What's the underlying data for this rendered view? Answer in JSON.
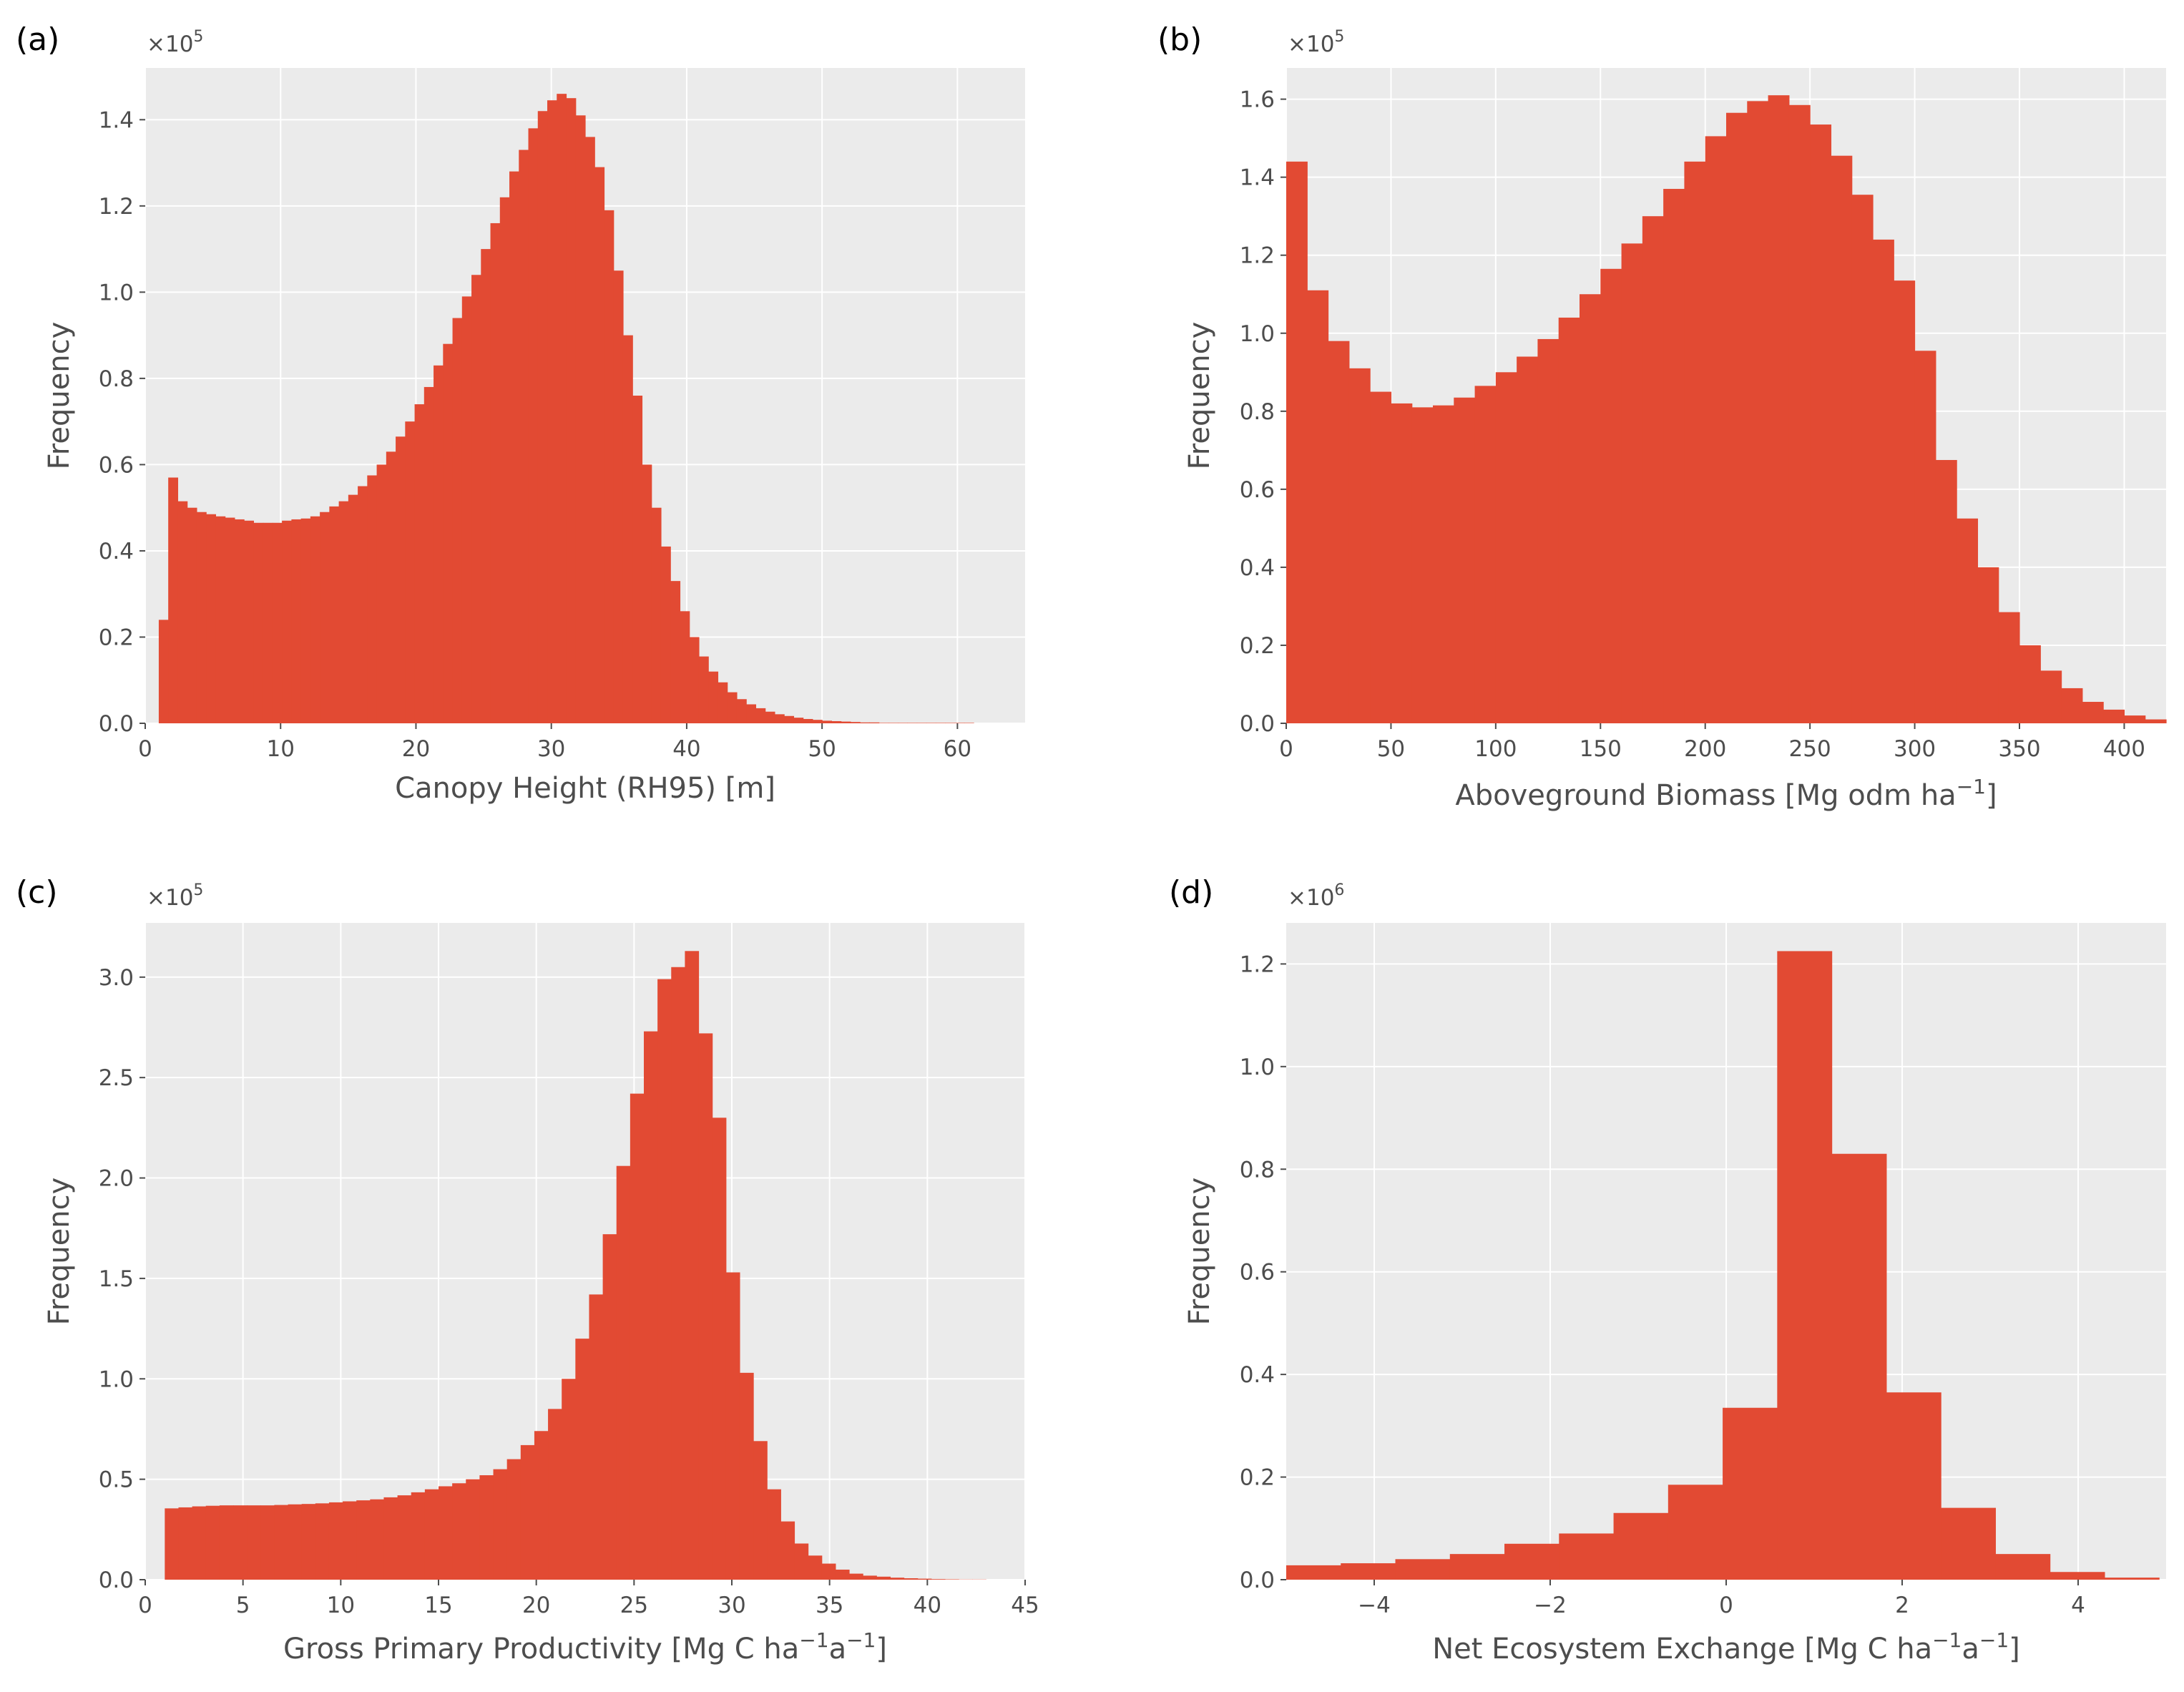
{
  "figure": {
    "bar_color": "#e24a33",
    "plot_bg": "#ebebeb",
    "grid_color": "#ffffff",
    "text_color": "#4d4d4d"
  },
  "chart_data": [
    {
      "panel_label": "(a)",
      "type": "bar",
      "subtype": "histogram",
      "title": "",
      "xlabel": "Canopy Height (RH95) [m]",
      "ylabel": "Frequency",
      "y_multiplier": "×10",
      "y_exponent": "5",
      "xlim": [
        0,
        65
      ],
      "ylim": [
        0,
        1.52
      ],
      "x_ticks": [
        0,
        10,
        20,
        30,
        40,
        50,
        60
      ],
      "x_tick_labels": [
        "0",
        "10",
        "20",
        "30",
        "40",
        "50",
        "60"
      ],
      "y_ticks": [
        0.0,
        0.2,
        0.4,
        0.6,
        0.8,
        1.0,
        1.2,
        1.4
      ],
      "y_tick_labels": [
        "0.0",
        "0.2",
        "0.4",
        "0.6",
        "0.8",
        "1.0",
        "1.2",
        "1.4"
      ],
      "bin_start": 1.0,
      "bin_width": 0.7,
      "values": [
        0.24,
        0.57,
        0.515,
        0.5,
        0.49,
        0.485,
        0.48,
        0.477,
        0.473,
        0.47,
        0.465,
        0.465,
        0.465,
        0.47,
        0.473,
        0.475,
        0.48,
        0.49,
        0.503,
        0.515,
        0.53,
        0.55,
        0.575,
        0.6,
        0.63,
        0.665,
        0.7,
        0.74,
        0.78,
        0.83,
        0.88,
        0.94,
        0.99,
        1.04,
        1.1,
        1.16,
        1.22,
        1.28,
        1.33,
        1.38,
        1.42,
        1.445,
        1.46,
        1.45,
        1.41,
        1.36,
        1.29,
        1.19,
        1.05,
        0.9,
        0.76,
        0.6,
        0.5,
        0.41,
        0.33,
        0.26,
        0.2,
        0.155,
        0.12,
        0.095,
        0.072,
        0.056,
        0.044,
        0.035,
        0.027,
        0.021,
        0.017,
        0.013,
        0.01,
        0.008,
        0.006,
        0.005,
        0.004,
        0.003,
        0.002,
        0.002,
        0.001,
        0.001,
        0.001,
        0.001,
        0.001,
        0.001,
        0.001,
        0.001,
        0.001,
        0.001
      ]
    },
    {
      "panel_label": "(b)",
      "type": "bar",
      "subtype": "histogram",
      "title": "",
      "xlabel": "Aboveground Biomass [Mg odm ha",
      "xlabel_sup": "−1",
      "xlabel_end": "]",
      "ylabel": "Frequency",
      "y_multiplier": "×10",
      "y_exponent": "5",
      "xlim": [
        0,
        420
      ],
      "ylim": [
        0,
        1.68
      ],
      "x_ticks": [
        0,
        50,
        100,
        150,
        200,
        250,
        300,
        350,
        400
      ],
      "x_tick_labels": [
        "0",
        "50",
        "100",
        "150",
        "200",
        "250",
        "300",
        "350",
        "400"
      ],
      "y_ticks": [
        0.0,
        0.2,
        0.4,
        0.6,
        0.8,
        1.0,
        1.2,
        1.4,
        1.6
      ],
      "y_tick_labels": [
        "0.0",
        "0.2",
        "0.4",
        "0.6",
        "0.8",
        "1.0",
        "1.2",
        "1.4",
        "1.6"
      ],
      "bin_start": 0,
      "bin_width": 10,
      "values": [
        1.44,
        1.11,
        0.98,
        0.91,
        0.85,
        0.82,
        0.81,
        0.815,
        0.835,
        0.865,
        0.9,
        0.94,
        0.985,
        1.04,
        1.1,
        1.165,
        1.23,
        1.3,
        1.37,
        1.44,
        1.505,
        1.565,
        1.595,
        1.61,
        1.585,
        1.535,
        1.455,
        1.355,
        1.24,
        1.135,
        0.955,
        0.675,
        0.525,
        0.4,
        0.285,
        0.2,
        0.135,
        0.09,
        0.055,
        0.035,
        0.02,
        0.01
      ]
    },
    {
      "panel_label": "(c)",
      "type": "bar",
      "subtype": "histogram",
      "title": "",
      "xlabel": "Gross Primary Productivity [Mg C ha",
      "xlabel_sup": "−1",
      "xlabel_mid": "a",
      "xlabel_sup2": "−1",
      "xlabel_end": "]",
      "ylabel": "Frequency",
      "y_multiplier": "×10",
      "y_exponent": "5",
      "xlim": [
        0,
        45
      ],
      "ylim": [
        0,
        3.27
      ],
      "x_ticks": [
        0,
        5,
        10,
        15,
        20,
        25,
        30,
        35,
        40,
        45
      ],
      "x_tick_labels": [
        "0",
        "5",
        "10",
        "15",
        "20",
        "25",
        "30",
        "35",
        "40",
        "45"
      ],
      "y_ticks": [
        0.0,
        0.5,
        1.0,
        1.5,
        2.0,
        2.5,
        3.0
      ],
      "y_tick_labels": [
        "0.0",
        "0.5",
        "1.0",
        "1.5",
        "2.0",
        "2.5",
        "3.0"
      ],
      "bin_start": 1.0,
      "bin_width": 0.7,
      "values": [
        0.355,
        0.36,
        0.365,
        0.368,
        0.37,
        0.37,
        0.37,
        0.37,
        0.372,
        0.375,
        0.377,
        0.38,
        0.385,
        0.39,
        0.395,
        0.4,
        0.41,
        0.42,
        0.435,
        0.45,
        0.465,
        0.48,
        0.5,
        0.52,
        0.55,
        0.6,
        0.67,
        0.74,
        0.85,
        1.0,
        1.2,
        1.42,
        1.72,
        2.06,
        2.42,
        2.73,
        2.99,
        3.05,
        3.13,
        2.72,
        2.3,
        1.53,
        1.03,
        0.69,
        0.45,
        0.29,
        0.18,
        0.12,
        0.08,
        0.05,
        0.03,
        0.02,
        0.015,
        0.01,
        0.007,
        0.005,
        0.003,
        0.002,
        0.001,
        0.001
      ]
    },
    {
      "panel_label": "(d)",
      "type": "bar",
      "subtype": "histogram",
      "title": "",
      "xlabel": "Net Ecosystem Exchange [Mg C ha",
      "xlabel_sup": "−1",
      "xlabel_mid": "a",
      "xlabel_sup2": "−1",
      "xlabel_end": "]",
      "ylabel": "Frequency",
      "y_multiplier": "×10",
      "y_exponent": "6",
      "xlim": [
        -5,
        5
      ],
      "ylim": [
        0,
        1.28
      ],
      "x_ticks": [
        -4,
        -2,
        0,
        2,
        4
      ],
      "x_tick_labels": [
        "−4",
        "−2",
        "0",
        "2",
        "4"
      ],
      "y_ticks": [
        0.0,
        0.2,
        0.4,
        0.6,
        0.8,
        1.0,
        1.2
      ],
      "y_tick_labels": [
        "0.0",
        "0.2",
        "0.4",
        "0.6",
        "0.8",
        "1.0",
        "1.2"
      ],
      "bin_start": -5.0,
      "bin_width": 0.62,
      "values": [
        0.028,
        0.032,
        0.04,
        0.05,
        0.07,
        0.09,
        0.13,
        0.185,
        0.335,
        1.225,
        0.83,
        0.365,
        0.14,
        0.05,
        0.015,
        0.004
      ]
    }
  ]
}
